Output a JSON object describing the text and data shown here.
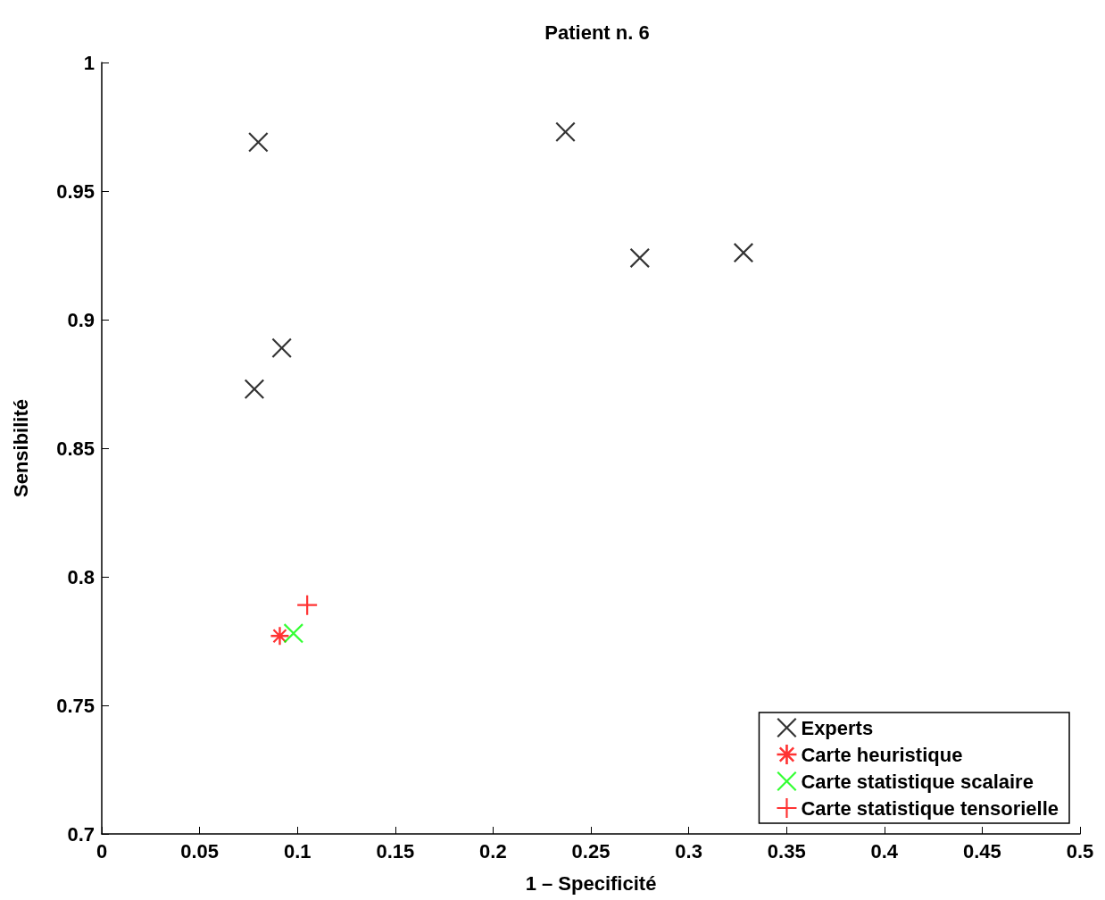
{
  "chart_data": {
    "type": "scatter",
    "title": "Patient n. 6",
    "xlabel": "1 – Specificité",
    "ylabel": "Sensibilité",
    "xlim": [
      0,
      0.5
    ],
    "xticks": [
      0,
      0.05,
      0.1,
      0.15,
      0.2,
      0.25,
      0.3,
      0.35,
      0.4,
      0.45,
      0.5
    ],
    "ylim": [
      0.7,
      1
    ],
    "yticks": [
      0.7,
      0.75,
      0.8,
      0.85,
      0.9,
      0.95,
      1
    ],
    "grid": false,
    "legend": "bottom right",
    "series": [
      {
        "name": "Experts",
        "color": "#000000",
        "marker": "cross",
        "x": [
          0.08,
          0.237,
          0.275,
          0.328,
          0.092,
          0.078
        ],
        "values": [
          0.969,
          0.973,
          0.924,
          0.926,
          0.889,
          0.873
        ]
      },
      {
        "name": "Carte heuristique",
        "color": "#ff0000",
        "marker": "star",
        "x": [
          0.091
        ],
        "values": [
          0.777
        ]
      },
      {
        "name": "Carte statistique scalaire",
        "color": "#00ff00",
        "marker": "cross",
        "x": [
          0.098
        ],
        "values": [
          0.778
        ]
      },
      {
        "name": "Carte statistique tensorielle",
        "color": "#ff0000",
        "marker": "plus",
        "x": [
          0.105
        ],
        "values": [
          0.789
        ]
      }
    ]
  }
}
